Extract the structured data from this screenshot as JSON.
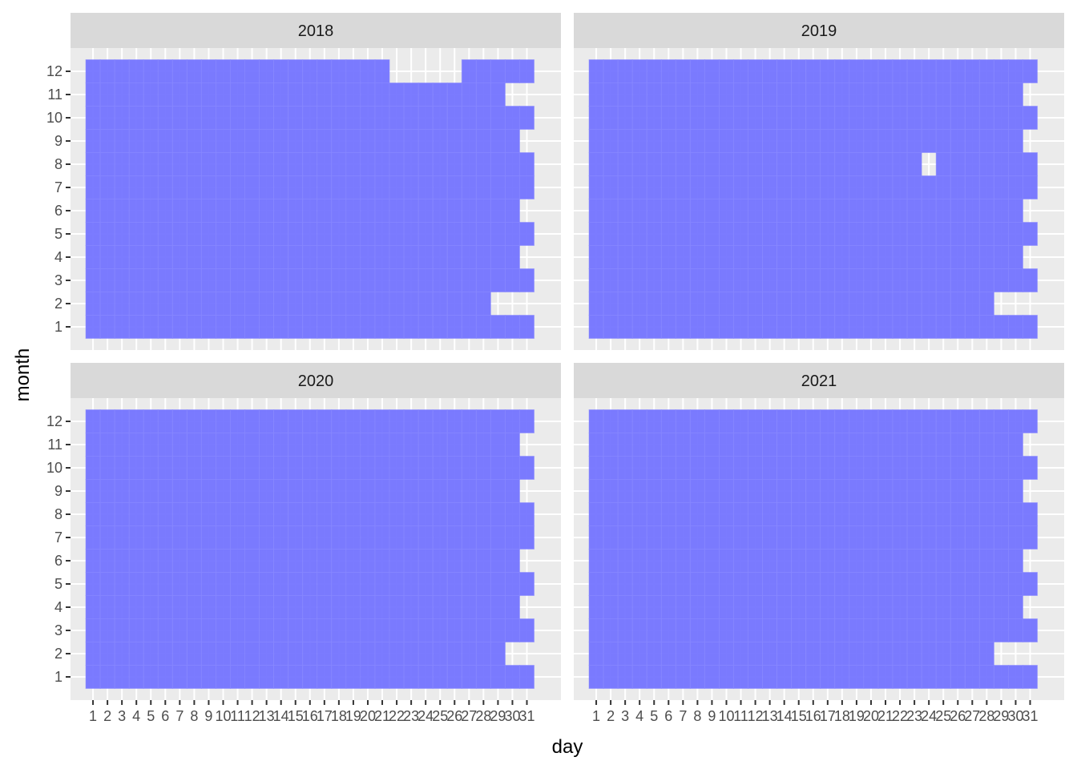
{
  "chart_data": {
    "type": "heatmap",
    "xlabel": "day",
    "ylabel": "month",
    "x_ticks": [
      1,
      2,
      3,
      4,
      5,
      6,
      7,
      8,
      9,
      10,
      11,
      12,
      13,
      14,
      15,
      16,
      17,
      18,
      19,
      20,
      21,
      22,
      23,
      24,
      25,
      26,
      27,
      28,
      29,
      30,
      31
    ],
    "y_ticks": [
      1,
      2,
      3,
      4,
      5,
      6,
      7,
      8,
      9,
      10,
      11,
      12
    ],
    "fill_color": "#7070ff",
    "panel_bg": "#ebebeb",
    "strip_bg": "#d9d9d9",
    "grid": true,
    "panels": [
      {
        "title": "2018",
        "days_in_month": [
          31,
          28,
          31,
          30,
          31,
          30,
          31,
          31,
          30,
          31,
          30,
          31
        ],
        "missing": [
          {
            "month": 11,
            "day": 30
          },
          {
            "month": 12,
            "day": 22
          },
          {
            "month": 12,
            "day": 23
          },
          {
            "month": 12,
            "day": 24
          },
          {
            "month": 12,
            "day": 25
          },
          {
            "month": 12,
            "day": 26
          }
        ]
      },
      {
        "title": "2019",
        "days_in_month": [
          31,
          28,
          31,
          30,
          31,
          30,
          31,
          31,
          30,
          31,
          30,
          31
        ],
        "missing": [
          {
            "month": 8,
            "day": 24
          }
        ]
      },
      {
        "title": "2020",
        "days_in_month": [
          31,
          29,
          31,
          30,
          31,
          30,
          31,
          31,
          30,
          31,
          30,
          31
        ],
        "missing": []
      },
      {
        "title": "2021",
        "days_in_month": [
          31,
          28,
          31,
          30,
          31,
          30,
          31,
          31,
          30,
          31,
          30,
          31
        ],
        "missing": []
      }
    ]
  }
}
